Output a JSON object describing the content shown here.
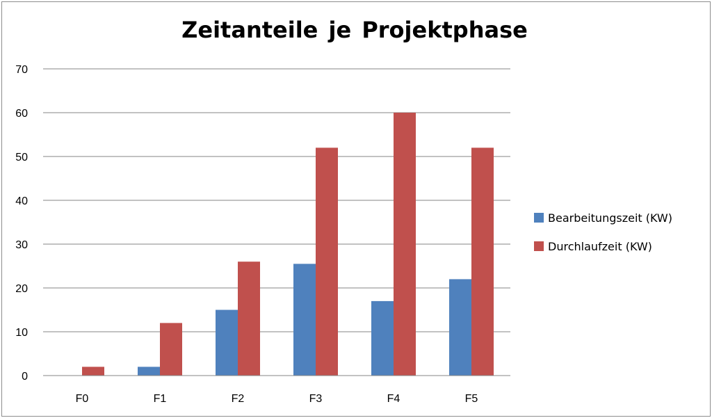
{
  "chart_data": {
    "type": "bar",
    "title": "Zeitanteile je  Projektphase",
    "categories": [
      "F0",
      "F1",
      "F2",
      "F3",
      "F4",
      "F5"
    ],
    "series": [
      {
        "name": "Bearbeitungszeit (KW)",
        "color": "#4F81BD",
        "values": [
          0,
          2,
          15,
          25.5,
          17,
          22
        ]
      },
      {
        "name": "Durchlaufzeit (KW)",
        "color": "#C0504D",
        "values": [
          2,
          12,
          26,
          52,
          60,
          52
        ]
      }
    ],
    "ylim": [
      0,
      70
    ],
    "yticks": [
      0,
      10,
      20,
      30,
      40,
      50,
      60,
      70
    ],
    "grid": true,
    "legend_position": "right"
  }
}
